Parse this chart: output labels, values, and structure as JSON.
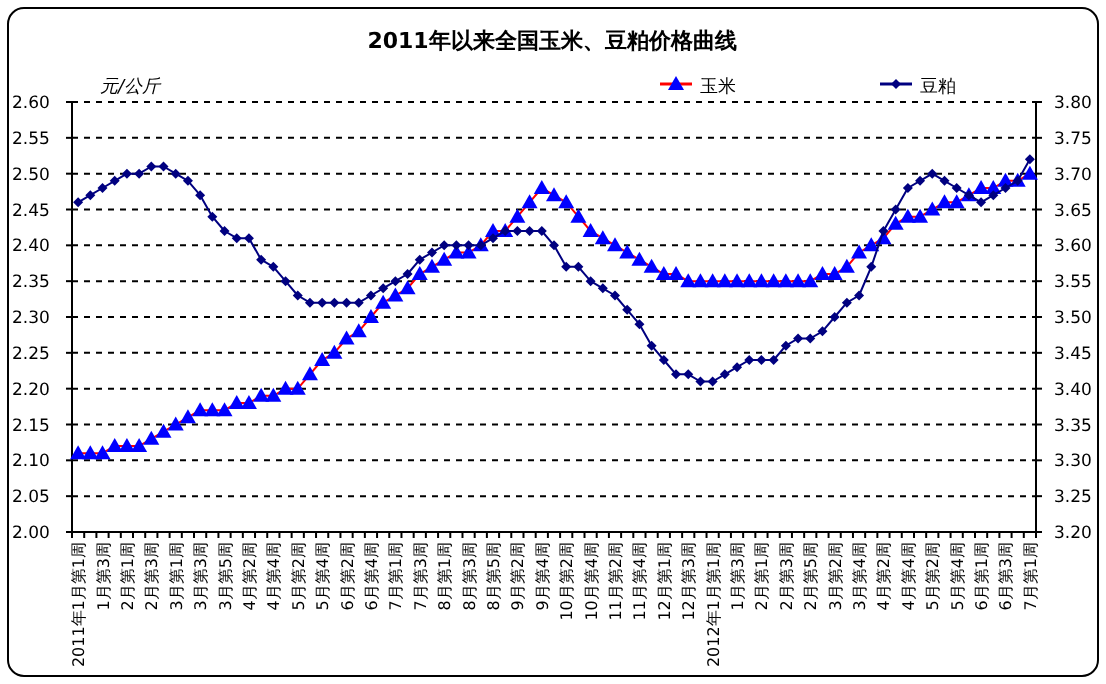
{
  "chart_data": {
    "type": "line",
    "title": "2011年以来全国玉米、豆粕价格曲线",
    "ylabel": "元/公斤",
    "categories": [
      "2011年1月第1周",
      null,
      "1月第3周",
      null,
      "2月第1周",
      null,
      "2月第3周",
      null,
      "3月第1周",
      null,
      "3月第3周",
      null,
      "3月第5周",
      null,
      "4月第2周",
      null,
      "4月第4周",
      null,
      "5月第2周",
      null,
      "5月第4周",
      null,
      "6月第2周",
      null,
      "6月第4周",
      null,
      "7月第1周",
      null,
      "7月第3周",
      null,
      "8月第1周",
      null,
      "8月第3周",
      null,
      "8月第5周",
      null,
      "9月第2周",
      null,
      "9月第4周",
      null,
      "10月第2周",
      null,
      "10月第4周",
      null,
      "11月第2周",
      null,
      "11月第4周",
      null,
      "12月第1周",
      null,
      "12月第3周",
      null,
      "2012年1月第1周",
      null,
      "1月第3周",
      null,
      "2月第1周",
      null,
      "2月第3周",
      null,
      "2月第5周",
      null,
      "3月第2周",
      null,
      "3月第4周",
      null,
      "4月第2周",
      null,
      "4月第4周",
      null,
      "5月第2周",
      null,
      "5月第4周",
      null,
      "6月第1周",
      null,
      "6月第3周",
      null,
      "7月第1周"
    ],
    "series": [
      {
        "name": "玉米",
        "color": "#ff0000",
        "colors": [
          "#0000ff",
          "#0000ff",
          "#0000ff",
          "#0000ff",
          "#0000ff",
          "#0000ff",
          "#0000ff",
          "#0000ff",
          "#0000ff",
          "#0000ff",
          "#0000ff",
          "#0000ff",
          "#0000ff",
          "#0000ff",
          "#0000ff",
          "#0000ff",
          "#0000ff",
          "#0000ff",
          "#0000ff",
          "#0000ff",
          "#0000ff",
          "#0000ff",
          "#0000ff",
          "#0000ff",
          "#0000ff",
          "#0000ff",
          "#0000ff",
          "#0000ff",
          "#0000ff",
          "#0000ff",
          "#0000ff",
          "#0000ff",
          "#0000ff",
          "#0000ff",
          "#0000ff",
          "#0000ff",
          "#0000ff",
          "#0000ff",
          "#0000ff",
          "#0000ff",
          "#0000ff",
          "#0000ff",
          "#0000ff",
          "#0000ff",
          "#0000ff",
          "#0000ff",
          "#0000ff",
          "#0000ff",
          "#0000ff",
          "#0000ff",
          "#0000ff",
          "#0000ff",
          "#0000ff",
          "#0000ff",
          "#0000ff",
          "#0000ff",
          "#0000ff",
          "#0000ff",
          "#0000ff",
          "#0000ff",
          "#0000ff",
          "#0000ff",
          "#0000ff",
          "#0000ff",
          "#0000ff",
          "#0000ff",
          "#0000ff",
          "#0000ff",
          "#0000ff",
          "#0000ff",
          "#0000ff",
          "#0000ff",
          "#0000ff",
          "#0000ff",
          "#0000ff",
          "#0000ff",
          "#0000ff",
          "#0000ff",
          "#0000ff"
        ],
        "marker": "triangle",
        "axis": "y",
        "values": [
          2.11,
          2.11,
          2.11,
          2.12,
          2.12,
          2.12,
          2.13,
          2.14,
          2.15,
          2.16,
          2.17,
          2.17,
          2.17,
          2.18,
          2.18,
          2.19,
          2.19,
          2.2,
          2.2,
          2.22,
          2.24,
          2.25,
          2.27,
          2.28,
          2.3,
          2.32,
          2.33,
          2.34,
          2.36,
          2.37,
          2.38,
          2.39,
          2.39,
          2.4,
          2.42,
          2.42,
          2.44,
          2.46,
          2.48,
          2.47,
          2.46,
          2.44,
          2.42,
          2.41,
          2.4,
          2.39,
          2.38,
          2.37,
          2.36,
          2.36,
          2.35,
          2.35,
          2.35,
          2.35,
          2.35,
          2.35,
          2.35,
          2.35,
          2.35,
          2.35,
          2.35,
          2.36,
          2.36,
          2.37,
          2.39,
          2.4,
          2.41,
          2.43,
          2.44,
          2.44,
          2.45,
          2.46,
          2.46,
          2.47,
          2.48,
          2.48,
          2.49,
          2.49,
          2.5
        ]
      },
      {
        "name": "豆粕",
        "color": "#000080",
        "marker": "diamond",
        "axis": "y2",
        "values": [
          3.66,
          3.67,
          3.68,
          3.69,
          3.7,
          3.7,
          3.71,
          3.71,
          3.7,
          3.69,
          3.67,
          3.64,
          3.62,
          3.61,
          3.61,
          3.58,
          3.57,
          3.55,
          3.53,
          3.52,
          3.52,
          3.52,
          3.52,
          3.52,
          3.53,
          3.54,
          3.55,
          3.56,
          3.58,
          3.59,
          3.6,
          3.6,
          3.6,
          3.6,
          3.61,
          3.62,
          3.62,
          3.62,
          3.62,
          3.6,
          3.57,
          3.57,
          3.55,
          3.54,
          3.53,
          3.51,
          3.49,
          3.46,
          3.44,
          3.42,
          3.42,
          3.41,
          3.41,
          3.42,
          3.43,
          3.44,
          3.44,
          3.44,
          3.46,
          3.47,
          3.47,
          3.48,
          3.5,
          3.52,
          3.53,
          3.57,
          3.62,
          3.65,
          3.68,
          3.69,
          3.7,
          3.69,
          3.68,
          3.67,
          3.66,
          3.67,
          3.68,
          3.69,
          3.72
        ]
      }
    ],
    "ylim": [
      2.0,
      2.6
    ],
    "yticks": [
      {
        "value": 2.0,
        "label": "2.00"
      },
      {
        "value": 2.05,
        "label": "2.05"
      },
      {
        "value": 2.1,
        "label": "2.10"
      },
      {
        "value": 2.15,
        "label": "2.15"
      },
      {
        "value": 2.2,
        "label": "2.20"
      },
      {
        "value": 2.25,
        "label": "2.25"
      },
      {
        "value": 2.3,
        "label": "2.30"
      },
      {
        "value": 2.35,
        "label": "2.35"
      },
      {
        "value": 2.4,
        "label": "2.40"
      },
      {
        "value": 2.45,
        "label": "2.45"
      },
      {
        "value": 2.5,
        "label": "2.50"
      },
      {
        "value": 2.55,
        "label": "2.55"
      },
      {
        "value": 2.6,
        "label": "2.60"
      }
    ],
    "y2lim": [
      3.2,
      3.8
    ],
    "y2ticks": [
      {
        "value": 3.2,
        "label": "3.20"
      },
      {
        "value": 3.25,
        "label": "3.25"
      },
      {
        "value": 3.3,
        "label": "3.30"
      },
      {
        "value": 3.35,
        "label": "3.35"
      },
      {
        "value": 3.4,
        "label": "3.40"
      },
      {
        "value": 3.45,
        "label": "3.45"
      },
      {
        "value": 3.5,
        "label": "3.50"
      },
      {
        "value": 3.55,
        "label": "3.55"
      },
      {
        "value": 3.6,
        "label": "3.60"
      },
      {
        "value": 3.65,
        "label": "3.65"
      },
      {
        "value": 3.7,
        "label": "3.70"
      },
      {
        "value": 3.75,
        "label": "3.75"
      },
      {
        "value": 3.8,
        "label": "3.80"
      }
    ],
    "grid": "y",
    "legend": "top right",
    "line_style": "solid"
  }
}
